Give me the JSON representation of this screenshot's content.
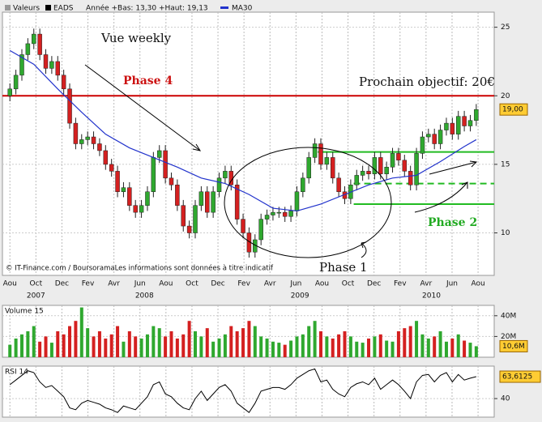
{
  "chart_data": [
    {
      "type": "candlestick",
      "header": {
        "label": "Valeurs",
        "symbol": "EADS",
        "range": "Année +Bas: 13,30 +Haut: 19,13"
      },
      "x": [
        0,
        2,
        4,
        6,
        8,
        10,
        12,
        14,
        16,
        18,
        20,
        22,
        24,
        26,
        28,
        30,
        32,
        34,
        36,
        38,
        40,
        42,
        44,
        46,
        48,
        50,
        52,
        54,
        56,
        58,
        60,
        62,
        64,
        66,
        68,
        70,
        72,
        74,
        76,
        78,
        80,
        82,
        84,
        86,
        88,
        90,
        92,
        94,
        96,
        98,
        100,
        102,
        104,
        106,
        108,
        110,
        112,
        114,
        116,
        118,
        120,
        122,
        124,
        126,
        128,
        130,
        132,
        134,
        136,
        138,
        140,
        142,
        144,
        146,
        148,
        150,
        152,
        154,
        156
      ],
      "open": [
        20.0,
        20.5,
        21.5,
        23.0,
        23.8,
        24.5,
        23.0,
        22.0,
        22.5,
        21.5,
        20.5,
        18.0,
        16.5,
        16.8,
        17.0,
        16.5,
        16.0,
        15.0,
        14.5,
        13.0,
        13.3,
        12.0,
        11.5,
        12.0,
        13.0,
        15.5,
        16.0,
        14.0,
        13.5,
        12.0,
        10.5,
        10.0,
        12.0,
        13.0,
        11.5,
        13.0,
        14.0,
        14.5,
        13.5,
        11.0,
        10.0,
        8.6,
        9.5,
        11.0,
        11.3,
        11.5,
        11.5,
        11.2,
        11.6,
        13.0,
        14.0,
        15.5,
        16.5,
        15.0,
        15.5,
        14.0,
        13.0,
        12.5,
        13.5,
        14.2,
        14.5,
        14.3,
        15.5,
        14.3,
        14.8,
        15.8,
        15.3,
        14.5,
        13.5,
        15.8,
        17.0,
        17.2,
        16.5,
        17.5,
        18.0,
        17.2,
        18.5,
        17.8,
        18.2
      ],
      "high": [
        20.9,
        21.9,
        23.4,
        24.2,
        24.9,
        24.9,
        23.4,
        22.9,
        22.9,
        21.9,
        20.9,
        18.4,
        17.2,
        17.4,
        17.4,
        16.9,
        16.4,
        15.4,
        14.9,
        13.7,
        13.7,
        12.4,
        12.4,
        13.4,
        15.9,
        16.4,
        16.4,
        14.4,
        13.9,
        12.4,
        10.9,
        12.4,
        13.4,
        13.4,
        13.4,
        14.4,
        14.9,
        14.9,
        13.9,
        11.4,
        10.4,
        9.9,
        11.4,
        11.7,
        11.9,
        11.9,
        11.9,
        12.0,
        13.4,
        14.4,
        15.9,
        16.9,
        16.9,
        15.9,
        15.9,
        14.4,
        13.4,
        13.9,
        14.6,
        14.9,
        14.9,
        15.9,
        15.9,
        15.2,
        16.2,
        16.2,
        15.7,
        14.9,
        16.2,
        17.4,
        17.6,
        17.6,
        17.9,
        18.4,
        18.4,
        18.9,
        18.9,
        18.6,
        19.4
      ],
      "low": [
        19.6,
        20.1,
        21.1,
        22.6,
        23.4,
        22.6,
        21.6,
        21.6,
        21.1,
        20.1,
        17.6,
        16.1,
        16.1,
        16.4,
        16.1,
        15.6,
        14.6,
        14.1,
        12.6,
        12.6,
        11.6,
        11.1,
        11.1,
        11.6,
        12.6,
        15.1,
        13.6,
        13.1,
        11.6,
        10.1,
        9.6,
        9.6,
        11.6,
        11.1,
        11.1,
        12.6,
        13.6,
        13.1,
        10.6,
        9.6,
        8.2,
        8.2,
        9.1,
        10.6,
        10.9,
        11.1,
        10.8,
        10.8,
        11.2,
        12.6,
        13.6,
        15.1,
        14.6,
        14.6,
        13.6,
        12.6,
        12.1,
        12.1,
        13.1,
        13.8,
        13.9,
        13.9,
        13.9,
        13.9,
        14.4,
        14.9,
        14.1,
        13.1,
        13.1,
        15.4,
        16.6,
        16.1,
        16.1,
        17.1,
        16.8,
        16.8,
        17.4,
        17.4,
        17.8
      ],
      "close": [
        20.5,
        21.5,
        23.0,
        23.8,
        24.5,
        23.0,
        22.0,
        22.5,
        21.5,
        20.5,
        18.0,
        16.5,
        16.8,
        17.0,
        16.5,
        16.0,
        15.0,
        14.5,
        13.0,
        13.3,
        12.0,
        11.5,
        12.0,
        13.0,
        15.5,
        16.0,
        14.0,
        13.5,
        12.0,
        10.5,
        10.0,
        12.0,
        13.0,
        11.5,
        13.0,
        14.0,
        14.5,
        13.5,
        11.0,
        10.0,
        8.6,
        9.5,
        11.0,
        11.3,
        11.5,
        11.5,
        11.2,
        11.6,
        13.0,
        14.0,
        15.5,
        16.5,
        15.0,
        15.5,
        14.0,
        13.0,
        12.5,
        13.5,
        14.2,
        14.5,
        14.3,
        15.5,
        14.3,
        14.8,
        15.8,
        15.3,
        14.5,
        13.5,
        15.8,
        17.0,
        17.2,
        16.5,
        17.5,
        18.0,
        17.2,
        18.5,
        17.8,
        18.2,
        19.0
      ],
      "up_color": "#2fa82f",
      "down_color": "#d42020",
      "ma": {
        "name": "MA30",
        "color": "#2233cc",
        "x": [
          0,
          8,
          16,
          24,
          32,
          40,
          48,
          56,
          64,
          72,
          80,
          88,
          96,
          104,
          112,
          120,
          128,
          136,
          144,
          152,
          156
        ],
        "values": [
          23.3,
          22.3,
          20.5,
          18.8,
          17.2,
          16.2,
          15.5,
          14.8,
          14.0,
          13.6,
          12.8,
          11.8,
          11.6,
          12.1,
          12.8,
          13.5,
          14.0,
          14.2,
          15.2,
          16.3,
          16.8
        ]
      },
      "levels": [
        {
          "value": 20,
          "color": "#cc0000"
        },
        {
          "value": 15.9,
          "color": "#22bb22",
          "x_start": 103
        },
        {
          "value": 13.6,
          "color": "#22bb22",
          "x_start": 115,
          "dashed": true
        },
        {
          "value": 12.1,
          "color": "#22bb22",
          "x_start": 115
        }
      ],
      "xlim": [
        -2.5,
        162
      ],
      "ylim": [
        6.9,
        26.1
      ],
      "yticks": [
        10,
        15,
        20,
        25
      ],
      "xticks": [
        {
          "value": 0,
          "label": "Aou"
        },
        {
          "value": 8.7,
          "label": "Oct"
        },
        {
          "value": 17.4,
          "label": "Dec"
        },
        {
          "value": 26.1,
          "label": "Fev"
        },
        {
          "value": 34.8,
          "label": "Avr"
        },
        {
          "value": 43.5,
          "label": "Jun"
        },
        {
          "value": 52.2,
          "label": "Aou"
        },
        {
          "value": 60.9,
          "label": "Oct"
        },
        {
          "value": 69.6,
          "label": "Dec"
        },
        {
          "value": 78.3,
          "label": "Fev"
        },
        {
          "value": 87,
          "label": "Avr"
        },
        {
          "value": 95.7,
          "label": "Jun"
        },
        {
          "value": 104.4,
          "label": "Aou"
        },
        {
          "value": 113.1,
          "label": "Oct"
        },
        {
          "value": 121.8,
          "label": "Dec"
        },
        {
          "value": 130.5,
          "label": "Fev"
        },
        {
          "value": 139.2,
          "label": "Avr"
        },
        {
          "value": 147.9,
          "label": "Jun"
        },
        {
          "value": 156.6,
          "label": "Aou"
        }
      ],
      "year_labels": [
        {
          "value": 8.7,
          "label": "2007"
        },
        {
          "value": 45,
          "label": "2008"
        },
        {
          "value": 97,
          "label": "2009"
        },
        {
          "value": 141,
          "label": "2010"
        }
      ],
      "last": {
        "value": 19,
        "label": "19,00"
      },
      "annotations": {
        "view": "Vue weekly",
        "phase4": "Phase 4",
        "target": "Prochain objectif: 20€",
        "phase2": "Phase 2",
        "phase1": "Phase 1"
      },
      "copyright": "© IT-Finance.com / BoursoramaLes informations sont données à titre indicatif"
    },
    {
      "type": "bar",
      "title": "Volume 15",
      "values": [
        12,
        18,
        22,
        25,
        30,
        15,
        20,
        14,
        25,
        22,
        30,
        35,
        48,
        28,
        20,
        25,
        18,
        22,
        30,
        15,
        25,
        20,
        18,
        22,
        30,
        28,
        20,
        25,
        18,
        22,
        35,
        25,
        20,
        28,
        15,
        18,
        22,
        30,
        25,
        28,
        35,
        30,
        20,
        18,
        15,
        14,
        12,
        16,
        20,
        22,
        30,
        35,
        25,
        20,
        18,
        22,
        25,
        20,
        15,
        14,
        18,
        20,
        22,
        16,
        15,
        25,
        28,
        30,
        35,
        22,
        18,
        20,
        25,
        15,
        18,
        22,
        16,
        14,
        10.6
      ],
      "ylim": [
        0,
        50
      ],
      "yticks": [
        {
          "value": 20,
          "label": "20M"
        },
        {
          "value": 40,
          "label": "40M"
        }
      ],
      "last": {
        "value": 10.6,
        "label": "10,6M"
      }
    },
    {
      "type": "line",
      "title": "RSI 14",
      "values": [
        55,
        60,
        65,
        70,
        68,
        58,
        52,
        54,
        48,
        42,
        30,
        28,
        35,
        38,
        36,
        34,
        30,
        28,
        25,
        32,
        30,
        28,
        35,
        42,
        55,
        58,
        45,
        42,
        35,
        30,
        28,
        40,
        48,
        38,
        45,
        52,
        55,
        48,
        35,
        30,
        25,
        35,
        48,
        50,
        52,
        52,
        50,
        55,
        62,
        66,
        70,
        72,
        58,
        60,
        50,
        45,
        42,
        52,
        56,
        58,
        55,
        62,
        50,
        55,
        60,
        55,
        48,
        40,
        58,
        65,
        66,
        58,
        65,
        68,
        58,
        66,
        60,
        62,
        63.6125
      ],
      "color": "#000000",
      "ylim": [
        20,
        75
      ],
      "yticks": [
        40
      ],
      "last": {
        "value": 63.6125,
        "label": "63,6125"
      }
    }
  ]
}
